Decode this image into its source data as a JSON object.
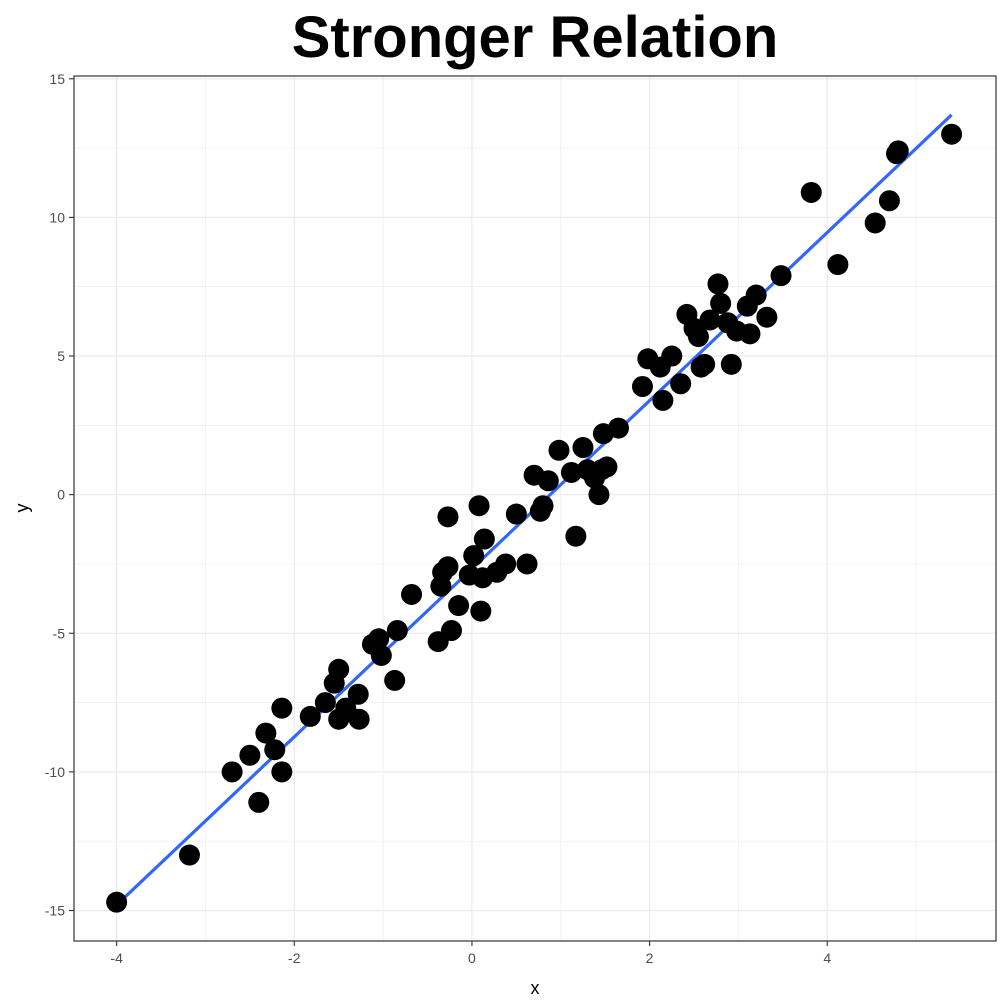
{
  "chart_data": {
    "type": "scatter",
    "title": "Stronger Relation",
    "xlabel": "x",
    "ylabel": "y",
    "xlim": [
      -4.48,
      5.9
    ],
    "ylim": [
      -16.1,
      15.1
    ],
    "x_ticks": [
      -4,
      -2,
      0,
      2,
      4
    ],
    "y_ticks": [
      -15,
      -10,
      -5,
      0,
      5,
      10,
      15
    ],
    "grid": true,
    "legend": "none",
    "colors": {
      "points": "#000000",
      "fit_line": "#3366ff",
      "grid": "#ebebeb",
      "axis": "#333333"
    },
    "fit_line": {
      "x": [
        -4.0,
        5.4
      ],
      "y": [
        -14.8,
        13.7
      ]
    },
    "points": [
      {
        "x": -4.0,
        "y": -14.7
      },
      {
        "x": -3.18,
        "y": -13.0
      },
      {
        "x": -2.7,
        "y": -10.0
      },
      {
        "x": -2.5,
        "y": -9.4
      },
      {
        "x": -2.4,
        "y": -11.1
      },
      {
        "x": -2.32,
        "y": -8.6
      },
      {
        "x": -2.22,
        "y": -9.2
      },
      {
        "x": -2.14,
        "y": -10.0
      },
      {
        "x": -2.14,
        "y": -7.7
      },
      {
        "x": -1.82,
        "y": -8.0
      },
      {
        "x": -1.65,
        "y": -7.5
      },
      {
        "x": -1.55,
        "y": -6.8
      },
      {
        "x": -1.5,
        "y": -6.3
      },
      {
        "x": -1.5,
        "y": -8.1
      },
      {
        "x": -1.42,
        "y": -7.7
      },
      {
        "x": -1.28,
        "y": -7.2
      },
      {
        "x": -1.27,
        "y": -8.1
      },
      {
        "x": -1.12,
        "y": -5.4
      },
      {
        "x": -1.05,
        "y": -5.2
      },
      {
        "x": -1.02,
        "y": -5.8
      },
      {
        "x": -0.87,
        "y": -6.7
      },
      {
        "x": -0.84,
        "y": -4.9
      },
      {
        "x": -0.68,
        "y": -3.6
      },
      {
        "x": -0.38,
        "y": -5.3
      },
      {
        "x": -0.35,
        "y": -3.3
      },
      {
        "x": -0.33,
        "y": -2.8
      },
      {
        "x": -0.27,
        "y": -2.6
      },
      {
        "x": -0.27,
        "y": -0.8
      },
      {
        "x": -0.23,
        "y": -4.9
      },
      {
        "x": -0.15,
        "y": -4.0
      },
      {
        "x": -0.03,
        "y": -2.9
      },
      {
        "x": 0.02,
        "y": -2.2
      },
      {
        "x": 0.08,
        "y": -0.4
      },
      {
        "x": 0.1,
        "y": -4.2
      },
      {
        "x": 0.12,
        "y": -3.0
      },
      {
        "x": 0.14,
        "y": -1.6
      },
      {
        "x": 0.28,
        "y": -2.8
      },
      {
        "x": 0.38,
        "y": -2.5
      },
      {
        "x": 0.5,
        "y": -0.7
      },
      {
        "x": 0.62,
        "y": -2.5
      },
      {
        "x": 0.7,
        "y": 0.7
      },
      {
        "x": 0.77,
        "y": -0.6
      },
      {
        "x": 0.8,
        "y": -0.4
      },
      {
        "x": 0.86,
        "y": 0.5
      },
      {
        "x": 0.98,
        "y": 1.6
      },
      {
        "x": 1.12,
        "y": 0.8
      },
      {
        "x": 1.17,
        "y": -1.5
      },
      {
        "x": 1.25,
        "y": 1.7
      },
      {
        "x": 1.3,
        "y": 0.9
      },
      {
        "x": 1.38,
        "y": 0.6
      },
      {
        "x": 1.43,
        "y": 0.0
      },
      {
        "x": 1.46,
        "y": 0.9
      },
      {
        "x": 1.48,
        "y": 2.2
      },
      {
        "x": 1.52,
        "y": 1.0
      },
      {
        "x": 1.65,
        "y": 2.4
      },
      {
        "x": 1.92,
        "y": 3.9
      },
      {
        "x": 1.98,
        "y": 4.9
      },
      {
        "x": 2.12,
        "y": 4.6
      },
      {
        "x": 2.15,
        "y": 3.4
      },
      {
        "x": 2.25,
        "y": 5.0
      },
      {
        "x": 2.35,
        "y": 4.0
      },
      {
        "x": 2.42,
        "y": 6.5
      },
      {
        "x": 2.5,
        "y": 6.0
      },
      {
        "x": 2.55,
        "y": 5.7
      },
      {
        "x": 2.58,
        "y": 4.6
      },
      {
        "x": 2.62,
        "y": 4.7
      },
      {
        "x": 2.68,
        "y": 6.3
      },
      {
        "x": 2.77,
        "y": 7.6
      },
      {
        "x": 2.8,
        "y": 6.9
      },
      {
        "x": 2.88,
        "y": 6.2
      },
      {
        "x": 2.92,
        "y": 4.7
      },
      {
        "x": 2.98,
        "y": 5.9
      },
      {
        "x": 3.1,
        "y": 6.8
      },
      {
        "x": 3.13,
        "y": 5.8
      },
      {
        "x": 3.2,
        "y": 7.2
      },
      {
        "x": 3.32,
        "y": 6.4
      },
      {
        "x": 3.48,
        "y": 7.9
      },
      {
        "x": 3.82,
        "y": 10.9
      },
      {
        "x": 4.12,
        "y": 8.3
      },
      {
        "x": 4.54,
        "y": 9.8
      },
      {
        "x": 4.7,
        "y": 10.6
      },
      {
        "x": 4.78,
        "y": 12.3
      },
      {
        "x": 4.8,
        "y": 12.4
      },
      {
        "x": 5.4,
        "y": 13.0
      }
    ]
  }
}
